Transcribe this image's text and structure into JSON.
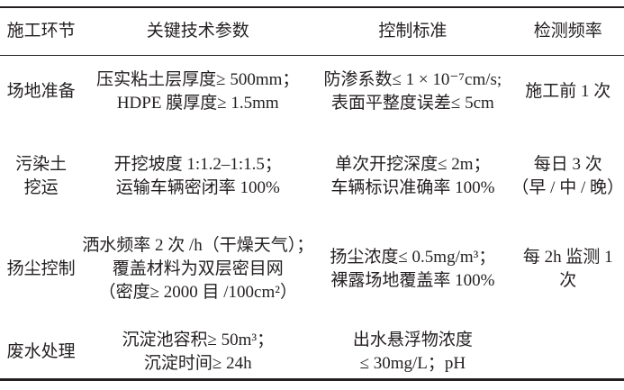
{
  "table": {
    "headers": [
      "施工环节",
      "关键技术参数",
      "控制标准",
      "检测频率"
    ],
    "rows": [
      {
        "stage": [
          "场地准备"
        ],
        "params": [
          "压实粘土层厚度≥ 500mm；",
          "HDPE 膜厚度≥ 1.5mm"
        ],
        "standard": [
          "防渗系数≤ 1 × 10⁻⁷cm/s;",
          "表面平整度误差≤ 5cm"
        ],
        "frequency": [
          "施工前 1 次"
        ]
      },
      {
        "stage": [
          "污染土",
          "挖运"
        ],
        "params": [
          "开挖坡度 1:1.2–1:1.5；",
          "运输车辆密闭率 100%"
        ],
        "standard": [
          "单次开挖深度≤ 2m；",
          "车辆标识准确率 100%"
        ],
        "frequency": [
          "每日 3 次",
          "（早 / 中 / 晚）"
        ]
      },
      {
        "stage": [
          "扬尘控制"
        ],
        "params": [
          "洒水频率 2 次 /h（干燥天气）；",
          "覆盖材料为双层密目网",
          "（密度≥ 2000 目 /100cm²）"
        ],
        "standard": [
          "扬尘浓度≤ 0.5mg/m³；",
          "裸露场地覆盖率 100%"
        ],
        "frequency": [
          "每 2h 监测 1",
          "次"
        ]
      },
      {
        "stage": [
          "废水处理"
        ],
        "params": [
          "沉淀池容积≥ 50m³；",
          "沉淀时间≥ 24h"
        ],
        "standard": [
          "出水悬浮物浓度",
          "≤ 30mg/L；pH"
        ],
        "frequency": []
      }
    ]
  }
}
